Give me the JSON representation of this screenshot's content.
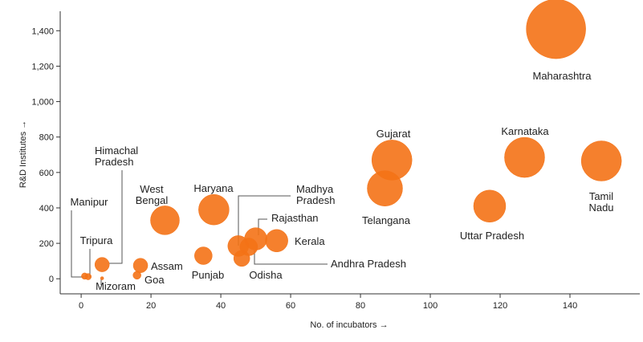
{
  "chart_data": {
    "type": "scatter",
    "xlabel": "No. of incubators →",
    "ylabel": "R&D Institutes →",
    "xlim": [
      -6,
      160
    ],
    "ylim": [
      -85,
      1510
    ],
    "x_ticks": [
      0,
      20,
      40,
      60,
      80,
      100,
      120,
      140
    ],
    "y_ticks": [
      0,
      200,
      400,
      600,
      800,
      1000,
      1200,
      1400
    ],
    "y_tick_labels": [
      "0",
      "200",
      "400",
      "600",
      "800",
      "1,000",
      "1,200",
      "1,400"
    ],
    "grid": false,
    "bubble_color": "#f47216",
    "points": [
      {
        "name": "Maharashtra",
        "x": 136,
        "y": 1410,
        "r": 37
      },
      {
        "name": "Gujarat",
        "x": 89,
        "y": 670,
        "r": 25
      },
      {
        "name": "Telangana",
        "x": 87,
        "y": 510,
        "r": 22
      },
      {
        "name": "Karnataka",
        "x": 127,
        "y": 685,
        "r": 25
      },
      {
        "name": "Tamil Nadu",
        "x": 149,
        "y": 665,
        "r": 25
      },
      {
        "name": "Uttar Pradesh",
        "x": 117,
        "y": 410,
        "r": 20
      },
      {
        "name": "Haryana",
        "x": 38,
        "y": 390,
        "r": 19
      },
      {
        "name": "West Bengal",
        "x": 24,
        "y": 330,
        "r": 18
      },
      {
        "name": "Madhya Pradesh",
        "x": 45,
        "y": 185,
        "r": 13
      },
      {
        "name": "Rajasthan",
        "x": 50,
        "y": 225,
        "r": 14
      },
      {
        "name": "Kerala",
        "x": 56,
        "y": 215,
        "r": 14
      },
      {
        "name": "Andhra Pradesh",
        "x": 48,
        "y": 180,
        "r": 11
      },
      {
        "name": "Odisha",
        "x": 46,
        "y": 115,
        "r": 10
      },
      {
        "name": "Punjab",
        "x": 35,
        "y": 130,
        "r": 11
      },
      {
        "name": "Assam",
        "x": 17,
        "y": 75,
        "r": 9
      },
      {
        "name": "Goa",
        "x": 16,
        "y": 20,
        "r": 5
      },
      {
        "name": "Himachal Pradesh",
        "x": 6,
        "y": 80,
        "r": 9
      },
      {
        "name": "Manipur",
        "x": 1,
        "y": 15,
        "r": 4
      },
      {
        "name": "Tripura",
        "x": 2,
        "y": 12,
        "r": 4
      },
      {
        "name": "Mizoram",
        "x": 6,
        "y": 3,
        "r": 2
      }
    ],
    "labels": {
      "Maharashtra": [
        "Maharashtra"
      ],
      "Gujarat": [
        "Gujarat"
      ],
      "Telangana": [
        "Telangana"
      ],
      "Karnataka": [
        "Karnataka"
      ],
      "Tamil Nadu": [
        "Tamil",
        "Nadu"
      ],
      "Uttar Pradesh": [
        "Uttar Pradesh"
      ],
      "Haryana": [
        "Haryana"
      ],
      "West Bengal": [
        "West",
        "Bengal"
      ],
      "Madhya Pradesh": [
        "Madhya",
        "Pradesh"
      ],
      "Rajasthan": [
        "Rajasthan"
      ],
      "Kerala": [
        "Kerala"
      ],
      "Andhra Pradesh": [
        "Andhra Pradesh"
      ],
      "Odisha": [
        "Odisha"
      ],
      "Punjab": [
        "Punjab"
      ],
      "Assam": [
        "Assam"
      ],
      "Goa": [
        "Goa"
      ],
      "Himachal Pradesh": [
        "Himachal",
        "Pradesh"
      ],
      "Manipur": [
        "Manipur"
      ],
      "Tripura": [
        "Tripura"
      ],
      "Mizoram": [
        "Mizoram"
      ]
    }
  }
}
